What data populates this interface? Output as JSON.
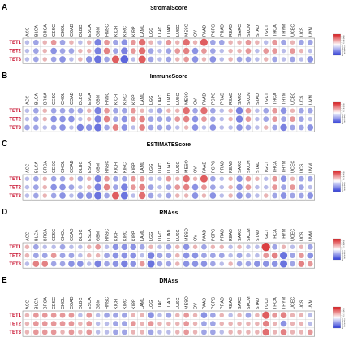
{
  "figure": {
    "cancers": [
      "ACC",
      "BLCA",
      "BRCA",
      "CESC",
      "CHOL",
      "COAD",
      "DLBC",
      "ESCA",
      "GBM",
      "HNSC",
      "KICH",
      "KIRC",
      "KIRP",
      "LAML",
      "LGG",
      "LIHC",
      "LUAD",
      "LUSC",
      "MESO",
      "OV",
      "PAAD",
      "PCPG",
      "PRAD",
      "READ",
      "SARC",
      "SKCM",
      "STAD",
      "TGCT",
      "THCA",
      "THYM",
      "UCEC",
      "UCS",
      "UVM"
    ],
    "genes": [
      "TET1",
      "TET2",
      "TET3"
    ],
    "colorbar_ticks": [
      "1",
      "0.8",
      "0.6",
      "0.4",
      "0.2",
      "0",
      "-0.2",
      "-0.4",
      "-0.6",
      "-0.8",
      "-1"
    ],
    "colors": {
      "positive": "#d7191c",
      "negative": "#2c39d6",
      "neutral": "#f3f3f3",
      "row_label": "#c8102e"
    }
  },
  "chart_data": [
    {
      "type": "heatmap",
      "panel": "A",
      "title": "StromalScore",
      "x": [
        "ACC",
        "BLCA",
        "BRCA",
        "CESC",
        "CHOL",
        "COAD",
        "DLBC",
        "ESCA",
        "GBM",
        "HNSC",
        "KICH",
        "KIRC",
        "KIRP",
        "LAML",
        "LGG",
        "LIHC",
        "LUAD",
        "LUSC",
        "MESO",
        "OV",
        "PAAD",
        "PCPG",
        "PRAD",
        "READ",
        "SARC",
        "SKCM",
        "STAD",
        "TGCT",
        "THCA",
        "THYM",
        "UCEC",
        "UCS",
        "UVM"
      ],
      "y": [
        "TET1",
        "TET2",
        "TET3"
      ],
      "values": [
        [
          -0.1,
          -0.2,
          0.1,
          0.2,
          -0.2,
          0.1,
          -0.1,
          0.1,
          -0.4,
          0.2,
          -0.2,
          -0.3,
          0.2,
          0.4,
          0.1,
          -0.1,
          0.2,
          0.1,
          0.4,
          0.1,
          0.5,
          -0.2,
          -0.2,
          0.1,
          0.1,
          0.2,
          0.1,
          -0.1,
          0.2,
          -0.2,
          0.1,
          -0.2,
          -0.2
        ],
        [
          -0.1,
          -0.2,
          0.1,
          -0.3,
          -0.2,
          -0.2,
          0.1,
          0.1,
          -0.4,
          0.3,
          -0.2,
          -0.4,
          0.2,
          0.4,
          -0.2,
          -0.1,
          -0.2,
          0.2,
          0.3,
          -0.3,
          0.2,
          -0.2,
          -0.1,
          0.1,
          0.1,
          0.2,
          -0.1,
          0.2,
          0.2,
          -0.1,
          0.2,
          0.1,
          -0.1
        ],
        [
          -0.1,
          -0.2,
          0.1,
          -0.2,
          -0.3,
          -0.1,
          0.1,
          -0.3,
          -0.5,
          -0.2,
          0.5,
          -0.6,
          -0.1,
          0.5,
          -0.2,
          -0.1,
          -0.2,
          0.1,
          0.2,
          -0.3,
          0.1,
          -0.3,
          -0.1,
          0.1,
          -0.2,
          -0.2,
          -0.1,
          0.1,
          -0.2,
          -0.1,
          -0.2,
          -0.1,
          -0.3
        ]
      ],
      "vrange": [
        -1,
        1
      ]
    },
    {
      "type": "heatmap",
      "panel": "B",
      "title": "ImmuneScore",
      "x": [
        "ACC",
        "BLCA",
        "BRCA",
        "CESC",
        "CHOL",
        "COAD",
        "DLBC",
        "ESCA",
        "GBM",
        "HNSC",
        "KICH",
        "KIRC",
        "KIRP",
        "LAML",
        "LGG",
        "LIHC",
        "LUAD",
        "LUSC",
        "MESO",
        "OV",
        "PAAD",
        "PCPG",
        "PRAD",
        "READ",
        "SARC",
        "SKCM",
        "STAD",
        "TGCT",
        "THCA",
        "THYM",
        "UCEC",
        "UCS",
        "UVM"
      ],
      "y": [
        "TET1",
        "TET2",
        "TET3"
      ],
      "values": [
        [
          -0.1,
          -0.2,
          0.1,
          -0.2,
          -0.2,
          -0.2,
          -0.2,
          0.1,
          -0.4,
          0.2,
          -0.2,
          -0.2,
          0.2,
          0.1,
          -0.1,
          -0.2,
          0.1,
          0.1,
          0.4,
          -0.2,
          0.4,
          -0.2,
          -0.1,
          0.1,
          -0.4,
          0.2,
          -0.1,
          -0.2,
          0.2,
          -0.3,
          0.1,
          -0.2,
          -0.2
        ],
        [
          -0.1,
          -0.2,
          0.1,
          -0.3,
          -0.3,
          -0.3,
          -0.1,
          0.1,
          -0.4,
          0.3,
          -0.2,
          -0.3,
          0.2,
          0.3,
          -0.2,
          -0.2,
          -0.2,
          0.2,
          0.3,
          -0.3,
          0.2,
          -0.2,
          -0.1,
          0.1,
          -0.4,
          0.2,
          -0.1,
          -0.2,
          0.2,
          -0.2,
          0.2,
          -0.2,
          -0.1
        ],
        [
          -0.2,
          -0.2,
          -0.1,
          -0.2,
          -0.3,
          -0.1,
          -0.4,
          -0.3,
          -0.5,
          -0.2,
          0.3,
          -0.3,
          -0.1,
          0.3,
          -0.2,
          -0.2,
          -0.2,
          -0.1,
          0.1,
          -0.3,
          -0.1,
          -0.3,
          -0.1,
          -0.1,
          -0.3,
          -0.2,
          -0.1,
          0.1,
          -0.2,
          -0.4,
          -0.2,
          -0.2,
          -0.3
        ]
      ],
      "vrange": [
        -1,
        1
      ]
    },
    {
      "type": "heatmap",
      "panel": "C",
      "title": "ESTIMATEScore",
      "x": [
        "ACC",
        "BLCA",
        "BRCA",
        "CESC",
        "CHOL",
        "COAD",
        "DLBC",
        "ESCA",
        "GBM",
        "HNSC",
        "KICH",
        "KIRC",
        "KIRP",
        "LAML",
        "LGG",
        "LIHC",
        "LUAD",
        "LUSC",
        "MESO",
        "OV",
        "PAAD",
        "PCPG",
        "PRAD",
        "READ",
        "SARC",
        "SKCM",
        "STAD",
        "TGCT",
        "THCA",
        "THYM",
        "UCEC",
        "UCS",
        "UVM"
      ],
      "y": [
        "TET1",
        "TET2",
        "TET3"
      ],
      "values": [
        [
          -0.1,
          -0.2,
          0.1,
          -0.2,
          -0.2,
          0.1,
          -0.2,
          0.1,
          -0.4,
          0.2,
          -0.2,
          -0.2,
          0.2,
          0.2,
          -0.1,
          -0.1,
          0.2,
          0.1,
          0.4,
          0.1,
          0.5,
          -0.2,
          -0.1,
          0.1,
          -0.3,
          0.2,
          0.1,
          -0.1,
          0.2,
          -0.3,
          0.1,
          -0.2,
          -0.2
        ],
        [
          -0.1,
          -0.2,
          0.1,
          -0.3,
          -0.3,
          -0.2,
          -0.1,
          0.1,
          -0.4,
          0.3,
          -0.2,
          -0.4,
          0.2,
          0.3,
          -0.2,
          -0.1,
          -0.2,
          0.2,
          0.3,
          -0.3,
          0.2,
          -0.2,
          -0.1,
          0.1,
          -0.3,
          0.2,
          -0.1,
          -0.1,
          0.2,
          -0.2,
          0.2,
          -0.2,
          -0.1
        ],
        [
          -0.1,
          -0.2,
          0.1,
          -0.2,
          -0.3,
          -0.1,
          -0.3,
          -0.3,
          -0.5,
          -0.2,
          0.5,
          -0.5,
          -0.1,
          0.4,
          -0.2,
          -0.1,
          -0.2,
          0.1,
          0.1,
          -0.3,
          0.1,
          -0.3,
          -0.1,
          0.1,
          -0.3,
          -0.2,
          -0.1,
          0.1,
          -0.2,
          -0.3,
          -0.2,
          -0.2,
          -0.3
        ]
      ],
      "vrange": [
        -1,
        1
      ]
    },
    {
      "type": "heatmap",
      "panel": "D",
      "title": "RNAss",
      "x": [
        "ACC",
        "BLCA",
        "BRCA",
        "CESC",
        "CHOL",
        "COAD",
        "DLBC",
        "ESCA",
        "GBM",
        "HNSC",
        "KICH",
        "KIRC",
        "KIRP",
        "LAML",
        "LGG",
        "LIHC",
        "LUAD",
        "LUSC",
        "MESO",
        "OV",
        "PAAD",
        "PCPG",
        "PRAD",
        "READ",
        "SARC",
        "SKCM",
        "STAD",
        "TGCT",
        "THCA",
        "THYM",
        "UCEC",
        "UCS",
        "UVM"
      ],
      "y": [
        "TET1",
        "TET2",
        "TET3"
      ],
      "values": [
        [
          0.1,
          -0.2,
          -0.1,
          -0.1,
          -0.2,
          -0.1,
          -0.1,
          0.1,
          0.2,
          -0.1,
          -0.3,
          -0.3,
          -0.3,
          -0.2,
          0.1,
          -0.1,
          -0.2,
          0.1,
          -0.3,
          0.1,
          -0.2,
          0.1,
          0.1,
          -0.1,
          0.1,
          -0.1,
          -0.1,
          0.7,
          -0.2,
          0.1,
          -0.1,
          0.1,
          -0.2
        ],
        [
          0.1,
          -0.2,
          -0.2,
          0.2,
          -0.2,
          -0.2,
          -0.1,
          0.1,
          0.1,
          -0.2,
          -0.3,
          -0.3,
          -0.3,
          -0.1,
          -0.4,
          -0.2,
          -0.2,
          0.1,
          -0.3,
          -0.3,
          -0.2,
          -0.2,
          -0.2,
          -0.1,
          -0.2,
          -0.1,
          -0.1,
          0.2,
          0.3,
          -0.5,
          -0.2,
          0.2,
          -0.3
        ],
        [
          -0.1,
          0.3,
          0.3,
          -0.2,
          -0.2,
          -0.3,
          -0.3,
          -0.1,
          -0.4,
          -0.2,
          -0.3,
          -0.4,
          -0.3,
          0.2,
          -0.5,
          -0.2,
          -0.2,
          0.1,
          -0.3,
          -0.3,
          -0.3,
          -0.2,
          -0.1,
          0.1,
          -0.2,
          -0.2,
          -0.3,
          -0.3,
          -0.3,
          -0.5,
          -0.2,
          0.3,
          0.2
        ]
      ],
      "vrange": [
        -1,
        1
      ]
    },
    {
      "type": "heatmap",
      "panel": "E",
      "title": "DNAss",
      "x": [
        "ACC",
        "BLCA",
        "BRCA",
        "CESC",
        "CHOL",
        "COAD",
        "DLBC",
        "ESCA",
        "GBM",
        "HNSC",
        "KICH",
        "KIRC",
        "KIRP",
        "LAML",
        "LGG",
        "LIHC",
        "LUAD",
        "LUSC",
        "MESO",
        "OV",
        "PAAD",
        "PCPG",
        "PRAD",
        "READ",
        "SARC",
        "SKCM",
        "STAD",
        "TGCT",
        "THCA",
        "THYM",
        "UCEC",
        "UCS",
        "UVM"
      ],
      "y": [
        "TET1",
        "TET2",
        "TET3"
      ],
      "values": [
        [
          0.1,
          0.2,
          0.2,
          0.2,
          0.2,
          0.2,
          -0.1,
          0.2,
          -0.1,
          -0.2,
          -0.2,
          -0.2,
          0.1,
          0.1,
          -0.3,
          -0.1,
          -0.2,
          0.1,
          0.2,
          0.1,
          -0.3,
          -0.2,
          0.1,
          -0.1,
          0.1,
          -0.2,
          0.1,
          0.5,
          0.2,
          0.3,
          0.1,
          0.1,
          -0.1
        ],
        [
          0.1,
          0.2,
          0.2,
          0.2,
          0.2,
          0.2,
          0.1,
          0.2,
          -0.1,
          -0.1,
          -0.2,
          -0.2,
          0.2,
          0.1,
          0.2,
          0.1,
          0.1,
          0.1,
          0.2,
          0.1,
          -0.2,
          -0.2,
          0.1,
          0.1,
          0.1,
          0.1,
          0.1,
          0.3,
          0.1,
          -0.3,
          0.1,
          0.1,
          -0.1
        ],
        [
          0.1,
          0.2,
          0.2,
          0.2,
          0.1,
          0.2,
          0.1,
          0.2,
          -0.1,
          -0.1,
          -0.2,
          -0.2,
          0.1,
          0.1,
          -0.2,
          -0.1,
          -0.1,
          0.1,
          0.2,
          0.1,
          -0.2,
          -0.2,
          -0.1,
          0.1,
          0.1,
          0.1,
          0.1,
          0.4,
          0.1,
          0.3,
          0.1,
          0.1,
          0.2
        ]
      ],
      "vrange": [
        -1,
        1
      ]
    }
  ]
}
